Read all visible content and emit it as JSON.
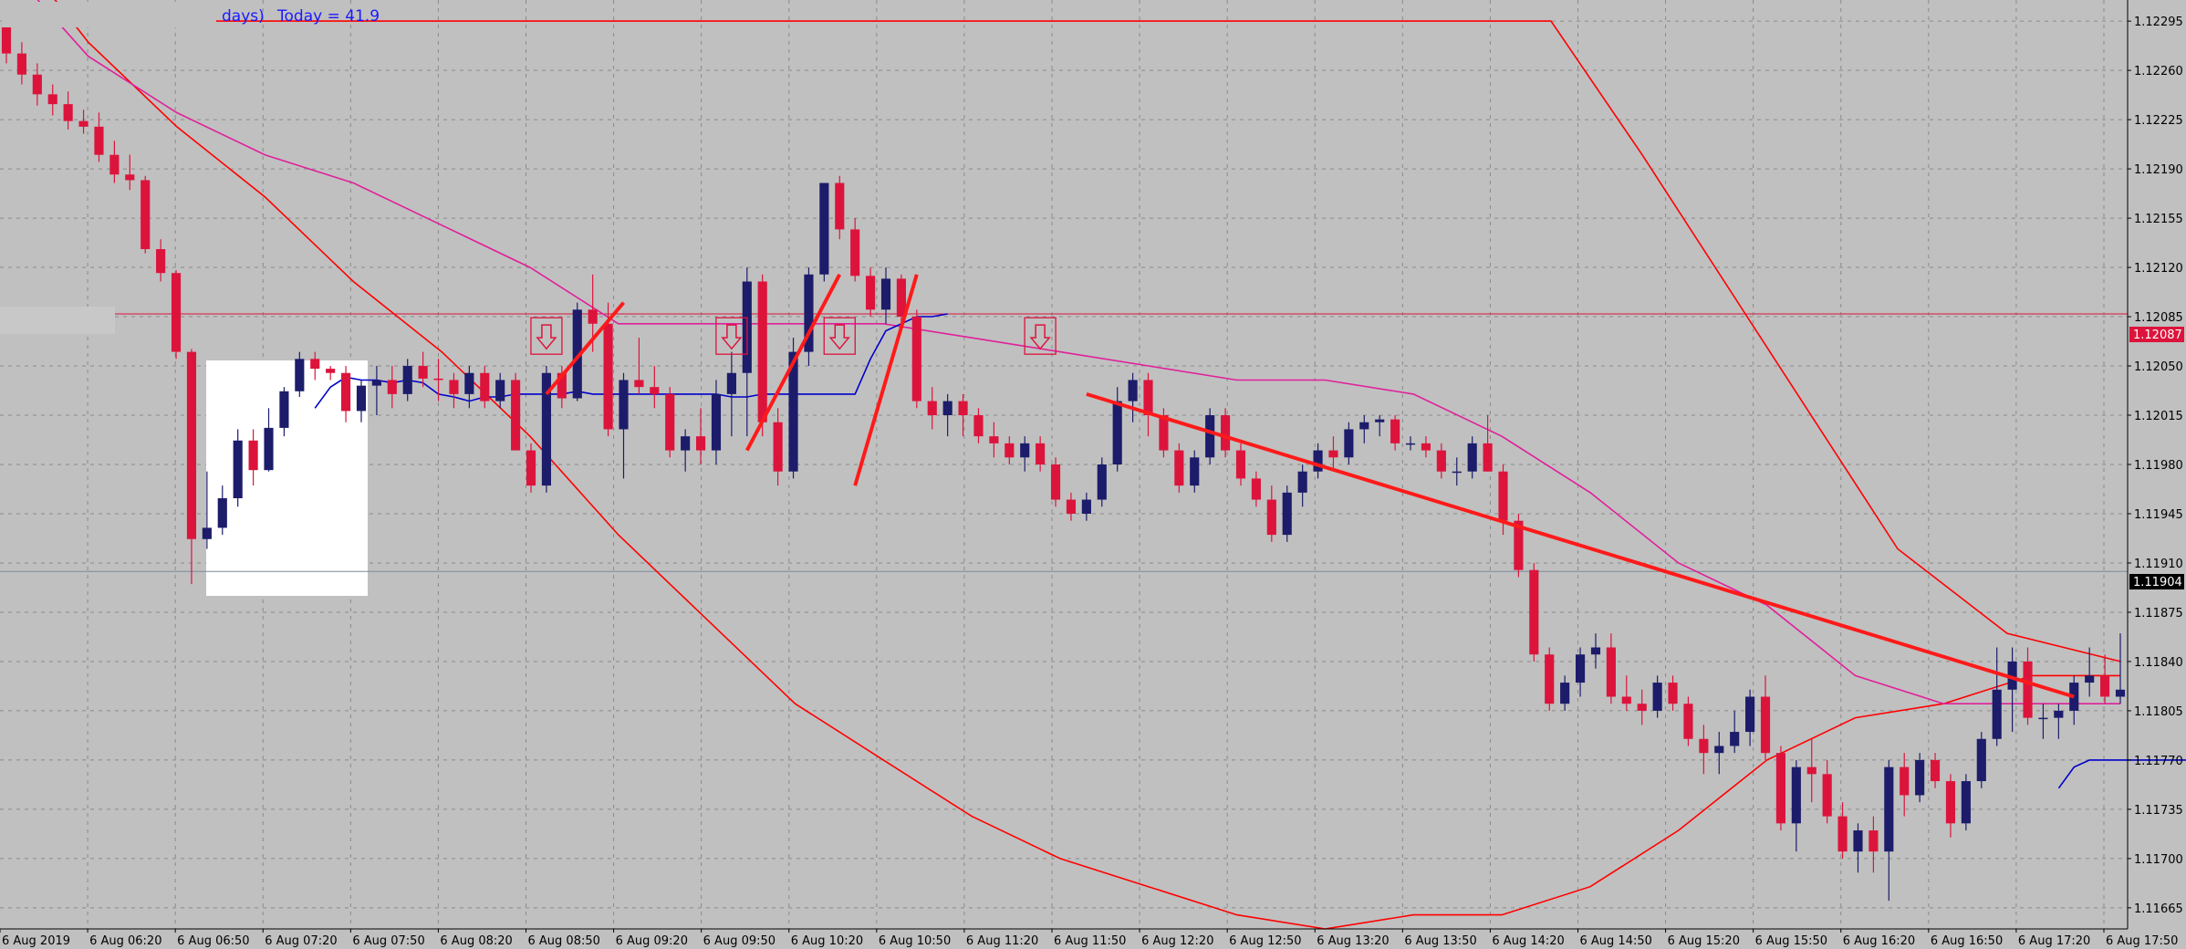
{
  "info": {
    "days_label": "days)",
    "today_label": "Today = 41.9"
  },
  "colors": {
    "background": "#c0c0c0",
    "grid": "#8a8a8a",
    "bull": "#1c1c6b",
    "bear": "#dc143c",
    "ma_red": "#ff0000",
    "ma_pink": "#e0209a",
    "ma_blue": "#0000cc",
    "resistance": "#ff1a1a",
    "current_tag": "#000000",
    "level_tag": "#dc143c"
  },
  "price_tags": {
    "level": "1.12087",
    "current": "1.11904"
  },
  "chart_data": {
    "type": "candlestick",
    "ylim": [
      1.1165,
      1.1231
    ],
    "y_ticks": [
      "1.12295",
      "1.12260",
      "1.12225",
      "1.12190",
      "1.12155",
      "1.12120",
      "1.12085",
      "1.12050",
      "1.12015",
      "1.11980",
      "1.11945",
      "1.11910",
      "1.11875",
      "1.11840",
      "1.11805",
      "1.11770",
      "1.11735",
      "1.11700",
      "1.11665"
    ],
    "x_ticks": [
      "6 Aug 2019",
      "6 Aug 06:20",
      "6 Aug 06:50",
      "6 Aug 07:20",
      "6 Aug 07:50",
      "6 Aug 08:20",
      "6 Aug 08:50",
      "6 Aug 09:20",
      "6 Aug 09:50",
      "6 Aug 10:20",
      "6 Aug 10:50",
      "6 Aug 11:20",
      "6 Aug 11:50",
      "6 Aug 12:20",
      "6 Aug 12:50",
      "6 Aug 13:20",
      "6 Aug 13:50",
      "6 Aug 14:20",
      "6 Aug 14:50",
      "6 Aug 15:20",
      "6 Aug 15:50",
      "6 Aug 16:20",
      "6 Aug 16:50",
      "6 Aug 17:20",
      "6 Aug 17:50"
    ],
    "horizontal_levels": [
      1.12087,
      1.11904
    ],
    "candles": [
      [
        1.12295,
        1.12295,
        1.12265,
        1.12272
      ],
      [
        1.12272,
        1.1228,
        1.1225,
        1.12257
      ],
      [
        1.12257,
        1.12265,
        1.12235,
        1.12243
      ],
      [
        1.12243,
        1.1225,
        1.12228,
        1.12236
      ],
      [
        1.12236,
        1.12245,
        1.12218,
        1.12224
      ],
      [
        1.12224,
        1.12232,
        1.12215,
        1.1222
      ],
      [
        1.1222,
        1.1223,
        1.12195,
        1.122
      ],
      [
        1.122,
        1.1221,
        1.1218,
        1.12186
      ],
      [
        1.12186,
        1.122,
        1.12175,
        1.12182
      ],
      [
        1.12182,
        1.12185,
        1.1213,
        1.12133
      ],
      [
        1.12133,
        1.1214,
        1.1211,
        1.12116
      ],
      [
        1.12116,
        1.12118,
        1.12055,
        1.1206
      ],
      [
        1.1206,
        1.12062,
        1.11895,
        1.11927
      ],
      [
        1.11927,
        1.11975,
        1.1192,
        1.11935
      ],
      [
        1.11935,
        1.11965,
        1.1193,
        1.11956
      ],
      [
        1.11956,
        1.12005,
        1.1195,
        1.11997
      ],
      [
        1.11997,
        1.12005,
        1.11965,
        1.11976
      ],
      [
        1.11976,
        1.1202,
        1.11975,
        1.12006
      ],
      [
        1.12006,
        1.12035,
        1.12,
        1.12032
      ],
      [
        1.12032,
        1.1206,
        1.12028,
        1.12055
      ],
      [
        1.12055,
        1.1206,
        1.1204,
        1.12048
      ],
      [
        1.12048,
        1.1205,
        1.1204,
        1.12045
      ],
      [
        1.12045,
        1.1205,
        1.1201,
        1.12018
      ],
      [
        1.12018,
        1.1204,
        1.1201,
        1.12036
      ],
      [
        1.12036,
        1.1205,
        1.12015,
        1.1204
      ],
      [
        1.1204,
        1.1205,
        1.1202,
        1.1203
      ],
      [
        1.1203,
        1.12055,
        1.12025,
        1.1205
      ],
      [
        1.1205,
        1.1206,
        1.12035,
        1.12041
      ],
      [
        1.12041,
        1.12055,
        1.12025,
        1.1204
      ],
      [
        1.1204,
        1.12045,
        1.1202,
        1.1203
      ],
      [
        1.1203,
        1.1205,
        1.1202,
        1.12045
      ],
      [
        1.12045,
        1.1205,
        1.1202,
        1.12025
      ],
      [
        1.12025,
        1.12045,
        1.1202,
        1.1204
      ],
      [
        1.1204,
        1.12045,
        1.1199,
        1.1199
      ],
      [
        1.1199,
        1.11995,
        1.1196,
        1.11965
      ],
      [
        1.11965,
        1.1205,
        1.1196,
        1.12045
      ],
      [
        1.12045,
        1.1205,
        1.1202,
        1.12027
      ],
      [
        1.12027,
        1.12095,
        1.12025,
        1.1209
      ],
      [
        1.1209,
        1.12115,
        1.1206,
        1.1208
      ],
      [
        1.1208,
        1.12095,
        1.12,
        1.12005
      ],
      [
        1.12005,
        1.12045,
        1.1197,
        1.1204
      ],
      [
        1.1204,
        1.1207,
        1.1203,
        1.12035
      ],
      [
        1.12035,
        1.1205,
        1.1202,
        1.1203
      ],
      [
        1.1203,
        1.12035,
        1.11985,
        1.1199
      ],
      [
        1.1199,
        1.12005,
        1.11975,
        1.12
      ],
      [
        1.12,
        1.1202,
        1.1198,
        1.1199
      ],
      [
        1.1199,
        1.1204,
        1.1198,
        1.1203
      ],
      [
        1.1203,
        1.1206,
        1.12,
        1.12045
      ],
      [
        1.12045,
        1.1212,
        1.12,
        1.1211
      ],
      [
        1.1211,
        1.12115,
        1.12,
        1.1201
      ],
      [
        1.1201,
        1.1202,
        1.11965,
        1.11975
      ],
      [
        1.11975,
        1.1207,
        1.1197,
        1.1206
      ],
      [
        1.1206,
        1.1212,
        1.1205,
        1.12115
      ],
      [
        1.12115,
        1.1218,
        1.1211,
        1.1218
      ],
      [
        1.1218,
        1.12185,
        1.1214,
        1.12147
      ],
      [
        1.12147,
        1.12155,
        1.1211,
        1.12114
      ],
      [
        1.12114,
        1.1212,
        1.12085,
        1.1209
      ],
      [
        1.1209,
        1.1212,
        1.1208,
        1.12112
      ],
      [
        1.12112,
        1.12115,
        1.1208,
        1.12085
      ],
      [
        1.12085,
        1.1209,
        1.1202,
        1.12025
      ],
      [
        1.12025,
        1.12035,
        1.12005,
        1.12015
      ],
      [
        1.12015,
        1.1203,
        1.12,
        1.12025
      ],
      [
        1.12025,
        1.1203,
        1.12,
        1.12015
      ],
      [
        1.12015,
        1.1202,
        1.11995,
        1.12
      ],
      [
        1.12,
        1.1201,
        1.11985,
        1.11995
      ],
      [
        1.11995,
        1.12,
        1.1198,
        1.11985
      ],
      [
        1.11985,
        1.12,
        1.11975,
        1.11995
      ],
      [
        1.11995,
        1.12,
        1.11975,
        1.1198
      ],
      [
        1.1198,
        1.11985,
        1.1195,
        1.11955
      ],
      [
        1.11955,
        1.1196,
        1.1194,
        1.11945
      ],
      [
        1.11945,
        1.1196,
        1.1194,
        1.11955
      ],
      [
        1.11955,
        1.11985,
        1.1195,
        1.1198
      ],
      [
        1.1198,
        1.12035,
        1.11975,
        1.12025
      ],
      [
        1.12025,
        1.12045,
        1.1201,
        1.1204
      ],
      [
        1.1204,
        1.12045,
        1.12,
        1.12015
      ],
      [
        1.12015,
        1.1202,
        1.11985,
        1.1199
      ],
      [
        1.1199,
        1.11995,
        1.1196,
        1.11965
      ],
      [
        1.11965,
        1.1199,
        1.1196,
        1.11985
      ],
      [
        1.11985,
        1.1202,
        1.1198,
        1.12015
      ],
      [
        1.12015,
        1.1202,
        1.11985,
        1.1199
      ],
      [
        1.1199,
        1.11995,
        1.11965,
        1.1197
      ],
      [
        1.1197,
        1.11975,
        1.1195,
        1.11955
      ],
      [
        1.11955,
        1.11965,
        1.11925,
        1.1193
      ],
      [
        1.1193,
        1.11965,
        1.11925,
        1.1196
      ],
      [
        1.1196,
        1.1198,
        1.1195,
        1.11975
      ],
      [
        1.11975,
        1.11995,
        1.1197,
        1.1199
      ],
      [
        1.1199,
        1.12,
        1.11975,
        1.11985
      ],
      [
        1.11985,
        1.1201,
        1.1198,
        1.12005
      ],
      [
        1.12005,
        1.12015,
        1.11995,
        1.1201
      ],
      [
        1.1201,
        1.12015,
        1.12,
        1.12012
      ],
      [
        1.12012,
        1.12015,
        1.1199,
        1.11995
      ],
      [
        1.11995,
        1.12,
        1.1199,
        1.11995
      ],
      [
        1.11995,
        1.12,
        1.11985,
        1.1199
      ],
      [
        1.1199,
        1.11995,
        1.1197,
        1.11975
      ],
      [
        1.11975,
        1.11985,
        1.11965,
        1.11975
      ],
      [
        1.11975,
        1.12,
        1.1197,
        1.11995
      ],
      [
        1.11995,
        1.12015,
        1.11975,
        1.11975
      ],
      [
        1.11975,
        1.1198,
        1.1193,
        1.1194
      ],
      [
        1.1194,
        1.11945,
        1.119,
        1.11905
      ],
      [
        1.11905,
        1.1191,
        1.1184,
        1.11845
      ],
      [
        1.11845,
        1.1185,
        1.11805,
        1.1181
      ],
      [
        1.1181,
        1.1183,
        1.11805,
        1.11825
      ],
      [
        1.11825,
        1.1185,
        1.11815,
        1.11845
      ],
      [
        1.11845,
        1.1186,
        1.11835,
        1.1185
      ],
      [
        1.1185,
        1.1186,
        1.1181,
        1.11815
      ],
      [
        1.11815,
        1.1183,
        1.11805,
        1.1181
      ],
      [
        1.1181,
        1.1182,
        1.11795,
        1.11805
      ],
      [
        1.11805,
        1.1183,
        1.118,
        1.11825
      ],
      [
        1.11825,
        1.1183,
        1.11805,
        1.1181
      ],
      [
        1.1181,
        1.11815,
        1.1178,
        1.11785
      ],
      [
        1.11785,
        1.11795,
        1.1176,
        1.11775
      ],
      [
        1.11775,
        1.1179,
        1.1176,
        1.1178
      ],
      [
        1.1178,
        1.11805,
        1.11775,
        1.1179
      ],
      [
        1.1179,
        1.1182,
        1.1178,
        1.11815
      ],
      [
        1.11815,
        1.1183,
        1.1177,
        1.11775
      ],
      [
        1.11775,
        1.1178,
        1.1172,
        1.11725
      ],
      [
        1.11725,
        1.1177,
        1.11705,
        1.11765
      ],
      [
        1.11765,
        1.11785,
        1.1174,
        1.1176
      ],
      [
        1.1176,
        1.1177,
        1.11725,
        1.1173
      ],
      [
        1.1173,
        1.1174,
        1.117,
        1.11705
      ],
      [
        1.11705,
        1.11725,
        1.1169,
        1.1172
      ],
      [
        1.1172,
        1.1173,
        1.1169,
        1.11705
      ],
      [
        1.11705,
        1.1177,
        1.1167,
        1.11765
      ],
      [
        1.11765,
        1.11775,
        1.1173,
        1.11745
      ],
      [
        1.11745,
        1.11775,
        1.1174,
        1.1177
      ],
      [
        1.1177,
        1.11775,
        1.1175,
        1.11755
      ],
      [
        1.11755,
        1.1176,
        1.11715,
        1.11725
      ],
      [
        1.11725,
        1.1176,
        1.1172,
        1.11755
      ],
      [
        1.11755,
        1.1179,
        1.1175,
        1.11785
      ],
      [
        1.11785,
        1.1185,
        1.1178,
        1.1182
      ],
      [
        1.1182,
        1.1185,
        1.1179,
        1.1184
      ],
      [
        1.1184,
        1.1185,
        1.11795,
        1.118
      ],
      [
        1.118,
        1.1181,
        1.11785,
        1.118
      ],
      [
        1.118,
        1.1181,
        1.11785,
        1.11805
      ],
      [
        1.11805,
        1.1183,
        1.11795,
        1.11825
      ],
      [
        1.11825,
        1.1185,
        1.11815,
        1.1183
      ],
      [
        1.1183,
        1.11845,
        1.1181,
        1.11815
      ],
      [
        1.11815,
        1.1186,
        1.1181,
        1.1182
      ]
    ],
    "ma_red": [
      1.1236,
      1.1228,
      1.1222,
      1.1217,
      1.1211,
      1.1206,
      1.12,
      1.1193,
      1.1187,
      1.1181,
      1.1177,
      1.1173,
      1.117,
      1.1168,
      1.1166,
      1.1165,
      1.1166,
      1.1166,
      1.1168,
      1.1172,
      1.1177,
      1.118,
      1.1181,
      1.1183,
      1.1183
    ],
    "ma_pink": [
      1.1234,
      1.1227,
      1.1223,
      1.122,
      1.1218,
      1.1215,
      1.1212,
      1.1208,
      1.1208,
      1.1208,
      1.1208,
      1.1207,
      1.1206,
      1.1205,
      1.1204,
      1.1204,
      1.1203,
      1.12,
      1.1196,
      1.1191,
      1.1188,
      1.1183,
      1.1181,
      1.1181,
      1.1181
    ],
    "ma_blue_start_index": 20,
    "ma_blue": [
      1.1202,
      1.12035,
      1.12042,
      1.1204,
      1.1204,
      1.12038,
      1.1204,
      1.12038,
      1.1203,
      1.12028,
      1.12025,
      1.12028,
      1.12028,
      1.1203,
      1.1203,
      1.1203,
      1.1203,
      1.12032,
      1.1203,
      1.1203,
      1.1203,
      1.1203,
      1.1203,
      1.1203,
      1.1203,
      1.1203,
      1.1203,
      1.12028,
      1.12028,
      1.1203,
      1.1203,
      1.1203,
      1.1203,
      1.1203,
      1.1203,
      1.1203,
      1.12055,
      1.12075,
      1.1208,
      1.12085,
      1.12085,
      1.12087
    ],
    "ma_blue_tail_start_index": 133,
    "ma_blue_tail": [
      1.1175,
      1.11765,
      1.1177,
      1.1177,
      1.1177,
      1.1177,
      1.1177,
      1.1177,
      1.1177,
      1.1177
    ],
    "resistance_line": {
      "x_index": [
        70,
        134
      ],
      "y": [
        1.1203,
        1.11815
      ]
    },
    "zigzag": [
      [
        [
          35,
          1.1203
        ],
        [
          40,
          1.12095
        ]
      ],
      [
        [
          48,
          1.1199
        ],
        [
          54,
          1.12115
        ]
      ],
      [
        [
          55,
          1.11965
        ],
        [
          59,
          1.12115
        ]
      ]
    ],
    "arrows_index": [
      35,
      47,
      54,
      67
    ]
  }
}
